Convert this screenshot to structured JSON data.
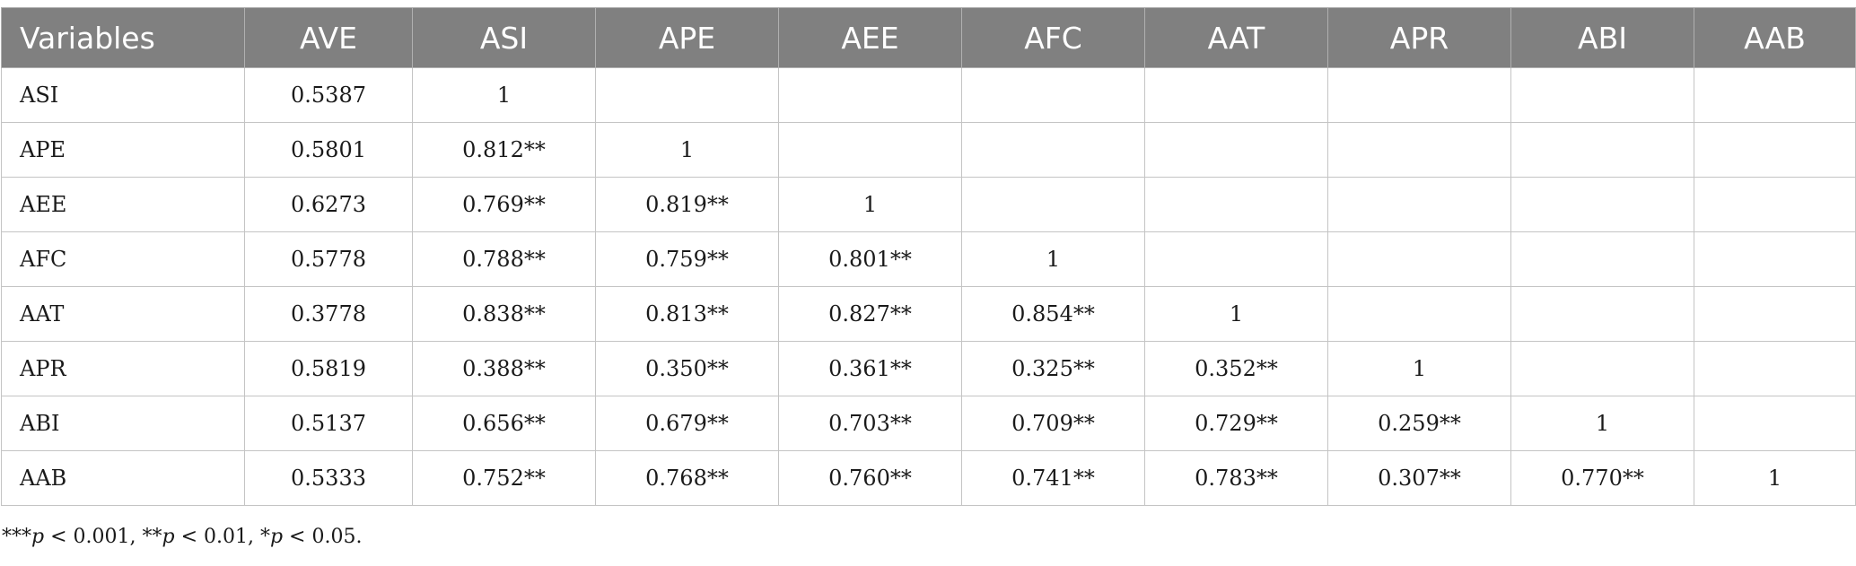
{
  "table": {
    "headers": [
      "Variables",
      "AVE",
      "ASI",
      "APE",
      "AEE",
      "AFC",
      "AAT",
      "APR",
      "ABI",
      "AAB"
    ],
    "rows": [
      [
        "ASI",
        "0.5387",
        "1",
        "",
        "",
        "",
        "",
        "",
        "",
        ""
      ],
      [
        "APE",
        "0.5801",
        "0.812**",
        "1",
        "",
        "",
        "",
        "",
        "",
        ""
      ],
      [
        "AEE",
        "0.6273",
        "0.769**",
        "0.819**",
        "1",
        "",
        "",
        "",
        "",
        ""
      ],
      [
        "AFC",
        "0.5778",
        "0.788**",
        "0.759**",
        "0.801**",
        "1",
        "",
        "",
        "",
        ""
      ],
      [
        "AAT",
        "0.3778",
        "0.838**",
        "0.813**",
        "0.827**",
        "0.854**",
        "1",
        "",
        "",
        ""
      ],
      [
        "APR",
        "0.5819",
        "0.388**",
        "0.350**",
        "0.361**",
        "0.325**",
        "0.352**",
        "1",
        "",
        ""
      ],
      [
        "ABI",
        "0.5137",
        "0.656**",
        "0.679**",
        "0.703**",
        "0.709**",
        "0.729**",
        "0.259**",
        "1",
        ""
      ],
      [
        "AAB",
        "0.5333",
        "0.752**",
        "0.768**",
        "0.760**",
        "0.741**",
        "0.783**",
        "0.307**",
        "0.770**",
        "1"
      ]
    ]
  },
  "footnote": {
    "stars3": "***",
    "p1": "p",
    "t1": " < 0.001, ",
    "stars2": "**",
    "p2": "p",
    "t2": " < 0.01, ",
    "stars1": "*",
    "p3": "p",
    "t3": " < 0.05."
  }
}
